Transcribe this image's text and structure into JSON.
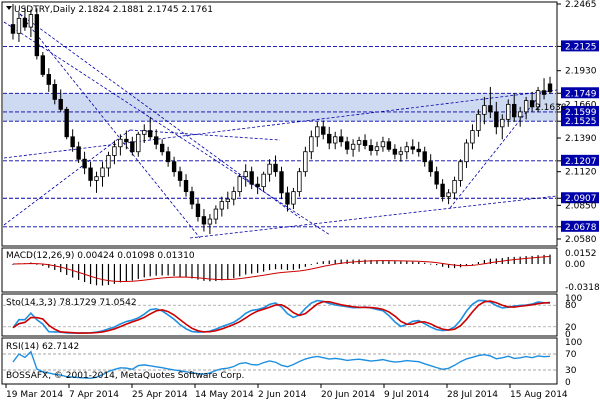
{
  "chart_data": [
    {
      "type": "candlestick",
      "symbol": "USDTRY",
      "timeframe": "Daily",
      "ohlc_header": [
        "2.1824",
        "2.1881",
        "2.1745",
        "2.1761"
      ],
      "ylim": [
        2.054,
        2.2465
      ],
      "price_ticks": [
        "2.2465",
        "2.2125",
        "2.1930",
        "2.1749",
        "2.1660",
        "2.1599",
        "2.1525",
        "2.1390",
        "2.1207",
        "2.1120",
        "2.0907",
        "2.0850",
        "2.0678",
        "2.0580"
      ],
      "levels": [
        {
          "value": 2.2125,
          "label": "2.2125",
          "color": "#0000aa",
          "style": "dash"
        },
        {
          "value": 2.1749,
          "label": "2.1749",
          "color": "#0000aa",
          "style": "dash"
        },
        {
          "value": 2.1599,
          "label": "2.1599",
          "color": "#0000aa",
          "style": "dash"
        },
        {
          "value": 2.1525,
          "label": "2.1525",
          "color": "#0000aa",
          "style": "dash"
        },
        {
          "value": 2.1207,
          "label": "2.1207",
          "color": "#0000aa",
          "style": "dash"
        },
        {
          "value": 2.0907,
          "label": "2.0907",
          "color": "#0000aa",
          "style": "dash"
        },
        {
          "value": 2.0678,
          "label": "2.0678",
          "color": "#0000aa",
          "style": "dash"
        }
      ],
      "highlight_zone": [
        2.1525,
        2.1749
      ],
      "zone_label": "2.1638",
      "x_labels": [
        "19 Mar 2014",
        "7 Apr 2014",
        "25 Apr 2014",
        "14 May 2014",
        "2 Jun 2014",
        "20 Jun 2014",
        "9 Jul 2014",
        "28 Jul 2014",
        "15 Aug 2014"
      ],
      "candles": [
        [
          2.23,
          2.2465,
          2.218,
          2.223
        ],
        [
          2.223,
          2.24,
          2.216,
          2.235
        ],
        [
          2.235,
          2.244,
          2.225,
          2.228
        ],
        [
          2.228,
          2.242,
          2.22,
          2.238
        ],
        [
          2.238,
          2.243,
          2.202,
          2.205
        ],
        [
          2.205,
          2.208,
          2.188,
          2.19
        ],
        [
          2.19,
          2.195,
          2.176,
          2.182
        ],
        [
          2.182,
          2.186,
          2.166,
          2.17
        ],
        [
          2.17,
          2.178,
          2.16,
          2.162
        ],
        [
          2.162,
          2.164,
          2.138,
          2.14
        ],
        [
          2.14,
          2.146,
          2.128,
          2.132
        ],
        [
          2.132,
          2.136,
          2.119,
          2.122
        ],
        [
          2.122,
          2.128,
          2.11,
          2.115
        ],
        [
          2.115,
          2.12,
          2.1,
          2.105
        ],
        [
          2.105,
          2.112,
          2.095,
          2.108
        ],
        [
          2.108,
          2.12,
          2.1,
          2.115
        ],
        [
          2.115,
          2.128,
          2.108,
          2.125
        ],
        [
          2.125,
          2.137,
          2.118,
          2.132
        ],
        [
          2.132,
          2.142,
          2.125,
          2.138
        ],
        [
          2.138,
          2.145,
          2.13,
          2.136
        ],
        [
          2.136,
          2.14,
          2.125,
          2.128
        ],
        [
          2.128,
          2.144,
          2.124,
          2.142
        ],
        [
          2.142,
          2.15,
          2.135,
          2.145
        ],
        [
          2.145,
          2.156,
          2.138,
          2.14
        ],
        [
          2.14,
          2.146,
          2.13,
          2.134
        ],
        [
          2.134,
          2.138,
          2.125,
          2.128
        ],
        [
          2.128,
          2.132,
          2.116,
          2.12
        ],
        [
          2.12,
          2.124,
          2.108,
          2.112
        ],
        [
          2.112,
          2.116,
          2.1,
          2.105
        ],
        [
          2.105,
          2.11,
          2.092,
          2.096
        ],
        [
          2.096,
          2.1,
          2.082,
          2.086
        ],
        [
          2.086,
          2.09,
          2.072,
          2.076
        ],
        [
          2.076,
          2.082,
          2.064,
          2.07
        ],
        [
          2.07,
          2.078,
          2.062,
          2.074
        ],
        [
          2.074,
          2.085,
          2.07,
          2.082
        ],
        [
          2.082,
          2.092,
          2.076,
          2.088
        ],
        [
          2.088,
          2.096,
          2.082,
          2.09
        ],
        [
          2.09,
          2.1,
          2.085,
          2.096
        ],
        [
          2.096,
          2.11,
          2.092,
          2.108
        ],
        [
          2.108,
          2.118,
          2.1,
          2.112
        ],
        [
          2.112,
          2.116,
          2.098,
          2.102
        ],
        [
          2.102,
          2.108,
          2.094,
          2.1
        ],
        [
          2.1,
          2.112,
          2.096,
          2.11
        ],
        [
          2.11,
          2.122,
          2.104,
          2.118
        ],
        [
          2.118,
          2.125,
          2.108,
          2.112
        ],
        [
          2.112,
          2.116,
          2.09,
          2.095
        ],
        [
          2.095,
          2.1,
          2.08,
          2.086
        ],
        [
          2.086,
          2.099,
          2.082,
          2.096
        ],
        [
          2.096,
          2.115,
          2.092,
          2.112
        ],
        [
          2.112,
          2.132,
          2.108,
          2.128
        ],
        [
          2.128,
          2.145,
          2.122,
          2.14
        ],
        [
          2.14,
          2.152,
          2.132,
          2.148
        ],
        [
          2.148,
          2.153,
          2.138,
          2.142
        ],
        [
          2.142,
          2.148,
          2.13,
          2.135
        ],
        [
          2.135,
          2.144,
          2.13,
          2.14
        ],
        [
          2.14,
          2.146,
          2.132,
          2.136
        ],
        [
          2.136,
          2.14,
          2.126,
          2.13
        ],
        [
          2.13,
          2.138,
          2.124,
          2.134
        ],
        [
          2.134,
          2.14,
          2.128,
          2.137
        ],
        [
          2.137,
          2.142,
          2.13,
          2.133
        ],
        [
          2.133,
          2.138,
          2.125,
          2.129
        ],
        [
          2.129,
          2.136,
          2.125,
          2.132
        ],
        [
          2.132,
          2.14,
          2.128,
          2.136
        ],
        [
          2.136,
          2.139,
          2.128,
          2.13
        ],
        [
          2.13,
          2.134,
          2.122,
          2.126
        ],
        [
          2.126,
          2.132,
          2.12,
          2.128
        ],
        [
          2.128,
          2.136,
          2.122,
          2.132
        ],
        [
          2.132,
          2.138,
          2.126,
          2.13
        ],
        [
          2.13,
          2.136,
          2.124,
          2.128
        ],
        [
          2.128,
          2.132,
          2.116,
          2.12
        ],
        [
          2.12,
          2.126,
          2.108,
          2.112
        ],
        [
          2.112,
          2.116,
          2.098,
          2.102
        ],
        [
          2.102,
          2.106,
          2.088,
          2.092
        ],
        [
          2.092,
          2.098,
          2.086,
          2.095
        ],
        [
          2.095,
          2.108,
          2.09,
          2.105
        ],
        [
          2.105,
          2.122,
          2.1,
          2.12
        ],
        [
          2.12,
          2.138,
          2.115,
          2.135
        ],
        [
          2.135,
          2.15,
          2.13,
          2.145
        ],
        [
          2.145,
          2.162,
          2.14,
          2.158
        ],
        [
          2.158,
          2.172,
          2.15,
          2.165
        ],
        [
          2.165,
          2.18,
          2.155,
          2.16
        ],
        [
          2.16,
          2.168,
          2.142,
          2.148
        ],
        [
          2.148,
          2.158,
          2.138,
          2.154
        ],
        [
          2.154,
          2.17,
          2.148,
          2.166
        ],
        [
          2.166,
          2.175,
          2.152,
          2.156
        ],
        [
          2.156,
          2.164,
          2.148,
          2.16
        ],
        [
          2.16,
          2.172,
          2.154,
          2.169
        ],
        [
          2.169,
          2.176,
          2.16,
          2.164
        ],
        [
          2.164,
          2.18,
          2.16,
          2.177
        ],
        [
          2.177,
          2.187,
          2.17,
          2.174
        ],
        [
          2.1824,
          2.1881,
          2.1745,
          2.1761
        ]
      ]
    },
    {
      "type": "macd",
      "title": "MACD(12,26,9) 0.00424 0.01098 0.01310",
      "ticks": [
        "0.0152",
        "0.00",
        "-0.03185"
      ],
      "ylim": [
        -0.036,
        0.018
      ]
    },
    {
      "type": "stochastic",
      "title": "Sto(14,3,3) 78.1729 71.0542",
      "ticks": [
        "100",
        "80",
        "20",
        "0"
      ],
      "ylim": [
        0,
        100
      ]
    },
    {
      "type": "rsi",
      "title": "RSI(14) 62.7142",
      "ticks": [
        "100",
        "70",
        "30",
        "0"
      ],
      "ylim": [
        0,
        100
      ]
    }
  ],
  "footer": {
    "copyright": "BOSSAFX, © 2001-2014, MetaQuotes Software Corp."
  },
  "colors": {
    "candle": "#000000",
    "level": "#0000aa",
    "zone": "#c6d4f0",
    "macd_signal": "#cc0000",
    "stoch_main": "#1e8fe0",
    "stoch_signal": "#cc0000",
    "rsi": "#1e8fe0"
  }
}
